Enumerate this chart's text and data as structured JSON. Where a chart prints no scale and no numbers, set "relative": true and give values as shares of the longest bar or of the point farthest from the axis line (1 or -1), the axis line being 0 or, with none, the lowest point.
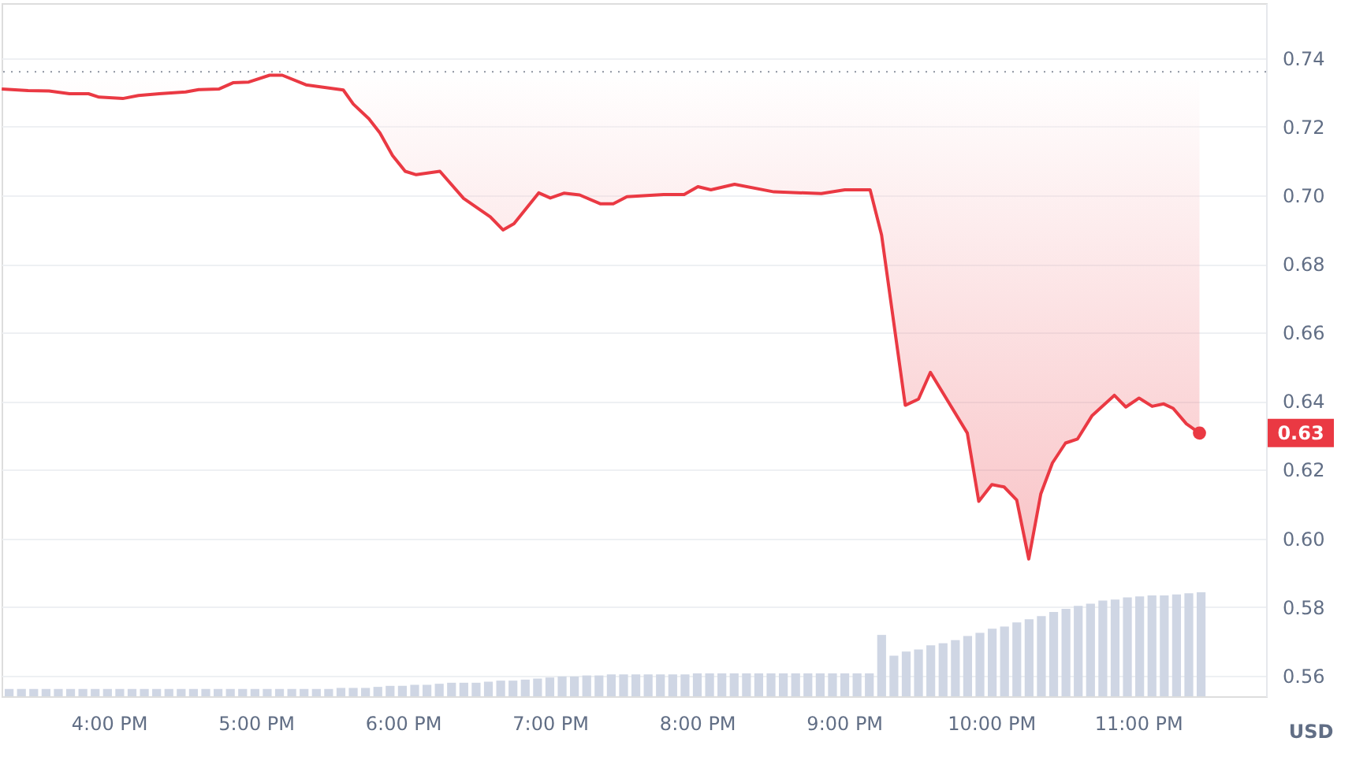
{
  "chart_data": [
    {
      "type": "line",
      "ylabel": "USD",
      "x": [
        15.271,
        15.45,
        15.593,
        15.732,
        15.861,
        15.933,
        16.094,
        16.201,
        16.343,
        16.522,
        16.611,
        16.75,
        16.844,
        16.951,
        17.093,
        17.179,
        17.34,
        17.594,
        17.662,
        17.768,
        17.843,
        17.929,
        18.015,
        18.09,
        18.251,
        18.412,
        18.594,
        18.68,
        18.755,
        18.923,
        19.002,
        19.094,
        19.201,
        19.344,
        19.43,
        19.523,
        19.773,
        19.912,
        20.006,
        20.094,
        20.255,
        20.523,
        20.845,
        21.005,
        21.177,
        21.255,
        21.416,
        21.506,
        21.587,
        21.838,
        21.916,
        22.005,
        22.088,
        22.174,
        22.256,
        22.338,
        22.417,
        22.506,
        22.588,
        22.685,
        22.838,
        22.916,
        23.006,
        23.095,
        23.174,
        23.238,
        23.328,
        23.417
      ],
      "series": [
        {
          "color": "#ea3943",
          "values": [
            0.731,
            0.7305,
            0.7304,
            0.7296,
            0.7296,
            0.7286,
            0.7282,
            0.7291,
            0.7296,
            0.7301,
            0.7308,
            0.731,
            0.7328,
            0.733,
            0.735,
            0.735,
            0.7322,
            0.7307,
            0.7266,
            0.7223,
            0.7182,
            0.7116,
            0.707,
            0.706,
            0.707,
            0.6991,
            0.6937,
            0.6899,
            0.6917,
            0.7007,
            0.6992,
            0.7006,
            0.7001,
            0.6975,
            0.6975,
            0.6996,
            0.7002,
            0.7002,
            0.7025,
            0.7016,
            0.7032,
            0.701,
            0.7005,
            0.7016,
            0.7016,
            0.6884,
            0.6388,
            0.6406,
            0.6484,
            0.6307,
            0.6108,
            0.6157,
            0.615,
            0.6112,
            0.594,
            0.613,
            0.622,
            0.6278,
            0.629,
            0.6357,
            0.6417,
            0.6383,
            0.6409,
            0.6385,
            0.6392,
            0.6379,
            0.6334,
            0.6307
          ],
          "lower": [
            0.731,
            0.7305,
            0.7304,
            0.7296,
            0.7296,
            0.7286,
            0.7282,
            0.7291,
            0.7296,
            0.7301,
            0.7308,
            0.731,
            0.7328,
            0.733,
            0.735,
            0.735,
            0.7322,
            0.7307,
            0.7266,
            0.7223,
            0.7182,
            0.7116,
            0.707,
            0.706,
            0.707,
            0.6991,
            0.6937,
            0.6899,
            0.6917,
            0.7007,
            0.6992,
            0.7006,
            0.7001,
            0.6975,
            0.6975,
            0.6996,
            0.7002,
            0.7002,
            0.7025,
            0.7016,
            0.7032,
            0.701,
            0.7005,
            0.7016,
            0.7016,
            0.6884,
            0.6388,
            0.6406,
            0.6484,
            0.6307,
            0.6108,
            0.6157,
            0.615,
            0.6112,
            0.594,
            0.613,
            0.622,
            0.6278,
            0.629,
            0.6357,
            0.6417,
            0.6383,
            0.6409,
            0.6385,
            0.6392,
            0.6379,
            0.6334,
            0.6307
          ],
          "upper": [
            0.736,
            0.736,
            0.736,
            0.736,
            0.736,
            0.736,
            0.736,
            0.736,
            0.736,
            0.736,
            0.736,
            0.736,
            0.736,
            0.736,
            0.736,
            0.736,
            0.736,
            0.736,
            0.736,
            0.736,
            0.736,
            0.736,
            0.736,
            0.736,
            0.736,
            0.736,
            0.736,
            0.736,
            0.736,
            0.736,
            0.736,
            0.736,
            0.736,
            0.736,
            0.736,
            0.736,
            0.736,
            0.736,
            0.736,
            0.736,
            0.736,
            0.736,
            0.736,
            0.736,
            0.736,
            0.736,
            0.736,
            0.736,
            0.736,
            0.736,
            0.736,
            0.736,
            0.736,
            0.736,
            0.736,
            0.736,
            0.736,
            0.736,
            0.736,
            0.736,
            0.736,
            0.736,
            0.736,
            0.736,
            0.736,
            0.736,
            0.736,
            0.736
          ]
        }
      ],
      "xlim": [
        15.27,
        23.87
      ],
      "xticks": [
        {
          "value": 16,
          "label": "4:00 PM"
        },
        {
          "value": 17,
          "label": "5:00 PM"
        },
        {
          "value": 18,
          "label": "6:00 PM"
        },
        {
          "value": 19,
          "label": "7:00 PM"
        },
        {
          "value": 20,
          "label": "8:00 PM"
        },
        {
          "value": 21,
          "label": "9:00 PM"
        },
        {
          "value": 22,
          "label": "10:00 PM"
        },
        {
          "value": 23,
          "label": "11:00 PM"
        }
      ],
      "ylim": [
        0.554,
        0.756
      ],
      "yticks": [
        0.56,
        0.58,
        {
          "value": 0.6,
          "label": "0.60"
        },
        0.62,
        0.64,
        0.66,
        0.68,
        {
          "value": 0.7,
          "label": "0.70"
        },
        0.72,
        0.74
      ],
      "ref_lines": [
        {
          "axis": "y",
          "value": 0.736,
          "color": "#9aa0ab",
          "line_style": "dotted"
        }
      ],
      "annotations": [
        "0.63"
      ],
      "grid": "y"
    },
    {
      "type": "bar",
      "relative": true,
      "color": "#cfd6e4",
      "categories": [
        null,
        null,
        null,
        null,
        null,
        null,
        null,
        null,
        null,
        null,
        null,
        null,
        null,
        null,
        null,
        null,
        null,
        null,
        null,
        null,
        null,
        null,
        null,
        null,
        null,
        null,
        null,
        null,
        null,
        null,
        null,
        null,
        null,
        null,
        null,
        null,
        null,
        null,
        null,
        null,
        null,
        null,
        null,
        null,
        null,
        null,
        null,
        null,
        null,
        null,
        null,
        null,
        null,
        null,
        null,
        null,
        null,
        null,
        null,
        null,
        null,
        null,
        null,
        null,
        null,
        null,
        null,
        null,
        null,
        null,
        null,
        null,
        null,
        null,
        null,
        null,
        null,
        null,
        null,
        null,
        null,
        null,
        null,
        null,
        null,
        null,
        null,
        null,
        null,
        null,
        null,
        null,
        null,
        null,
        null,
        null,
        null,
        null
      ],
      "values": [
        0.07,
        0.07,
        0.07,
        0.07,
        0.07,
        0.07,
        0.07,
        0.07,
        0.07,
        0.07,
        0.07,
        0.07,
        0.07,
        0.07,
        0.07,
        0.07,
        0.07,
        0.07,
        0.07,
        0.07,
        0.07,
        0.07,
        0.07,
        0.07,
        0.07,
        0.07,
        0.07,
        0.08,
        0.08,
        0.08,
        0.09,
        0.1,
        0.1,
        0.11,
        0.11,
        0.12,
        0.13,
        0.13,
        0.13,
        0.14,
        0.15,
        0.15,
        0.16,
        0.17,
        0.18,
        0.19,
        0.19,
        0.2,
        0.2,
        0.21,
        0.21,
        0.21,
        0.21,
        0.21,
        0.21,
        0.21,
        0.22,
        0.22,
        0.22,
        0.22,
        0.22,
        0.22,
        0.22,
        0.22,
        0.22,
        0.22,
        0.22,
        0.22,
        0.22,
        0.22,
        0.22,
        0.59,
        0.39,
        0.43,
        0.45,
        0.49,
        0.51,
        0.54,
        0.58,
        0.61,
        0.65,
        0.67,
        0.71,
        0.74,
        0.77,
        0.81,
        0.84,
        0.87,
        0.89,
        0.92,
        0.93,
        0.95,
        0.96,
        0.97,
        0.97,
        0.98,
        0.99,
        1
      ]
    }
  ]
}
